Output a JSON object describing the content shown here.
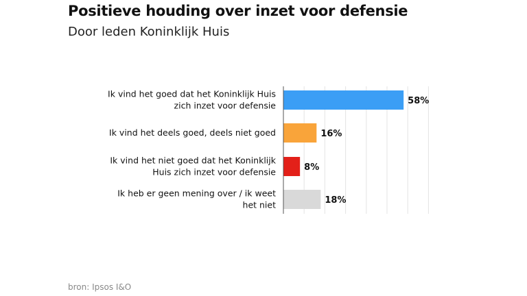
{
  "chart_data": {
    "type": "bar",
    "orientation": "horizontal",
    "title": "Positieve houding over inzet voor defensie",
    "subtitle": "Door leden Koninklijk Huis",
    "categories": [
      [
        "Ik vind het goed dat het Koninklijk Huis",
        "zich inzet voor defensie"
      ],
      [
        "Ik vind het deels goed, deels niet goed"
      ],
      [
        "Ik vind het niet goed dat het Koninklijk",
        "Huis zich inzet voor defensie"
      ],
      [
        "Ik heb er geen mening over / ik weet",
        "het niet"
      ]
    ],
    "values": [
      58,
      16,
      8,
      18
    ],
    "value_labels": [
      "58%",
      "16%",
      "8%",
      "18%"
    ],
    "colors": [
      "#3b9ef5",
      "#f9a43a",
      "#e32019",
      "#d9d9d9"
    ],
    "xlim": [
      0,
      70
    ],
    "grid": true,
    "source": "bron: Ipsos I&O"
  }
}
